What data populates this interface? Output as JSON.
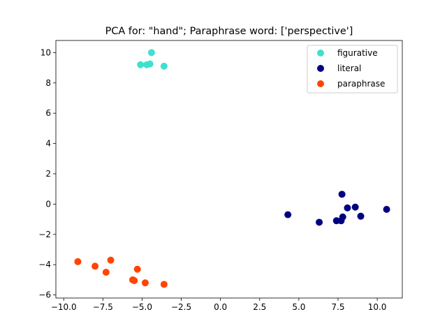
{
  "chart_data": {
    "type": "scatter",
    "title": "PCA for: \"hand\"; Paraphrase word: ['perspective']",
    "xlabel": "",
    "ylabel": "",
    "xlim": [
      -10.5,
      11.6
    ],
    "ylim": [
      -6.2,
      10.8
    ],
    "xticks": [
      -10.0,
      -7.5,
      -5.0,
      -2.5,
      0.0,
      2.5,
      5.0,
      7.5,
      10.0
    ],
    "xtick_labels": [
      "−10.0",
      "−7.5",
      "−5.0",
      "−2.5",
      "0.0",
      "2.5",
      "5.0",
      "7.5",
      "10.0"
    ],
    "yticks": [
      -6,
      -4,
      -2,
      0,
      2,
      4,
      6,
      8,
      10
    ],
    "ytick_labels": [
      "−6",
      "−4",
      "−2",
      "0",
      "2",
      "4",
      "6",
      "8",
      "10"
    ],
    "grid": false,
    "legend_position": "top-right",
    "series": [
      {
        "name": "figurative",
        "color": "#40e0d0",
        "points": [
          [
            -4.4,
            10.0
          ],
          [
            -5.1,
            9.2
          ],
          [
            -4.7,
            9.2
          ],
          [
            -4.5,
            9.25
          ],
          [
            -3.6,
            9.1
          ]
        ]
      },
      {
        "name": "literal",
        "color": "#000080",
        "points": [
          [
            4.3,
            -0.7
          ],
          [
            6.3,
            -1.2
          ],
          [
            7.4,
            -1.1
          ],
          [
            7.7,
            -1.1
          ],
          [
            7.8,
            -0.85
          ],
          [
            7.75,
            0.65
          ],
          [
            8.1,
            -0.25
          ],
          [
            8.6,
            -0.2
          ],
          [
            8.95,
            -0.8
          ],
          [
            10.6,
            -0.35
          ]
        ]
      },
      {
        "name": "paraphrase",
        "color": "#ff4500",
        "points": [
          [
            -9.1,
            -3.8
          ],
          [
            -8.0,
            -4.1
          ],
          [
            -7.3,
            -4.5
          ],
          [
            -7.0,
            -3.7
          ],
          [
            -5.6,
            -5.0
          ],
          [
            -5.5,
            -5.05
          ],
          [
            -5.3,
            -4.3
          ],
          [
            -4.8,
            -5.2
          ],
          [
            -3.6,
            -5.3
          ]
        ]
      }
    ]
  }
}
